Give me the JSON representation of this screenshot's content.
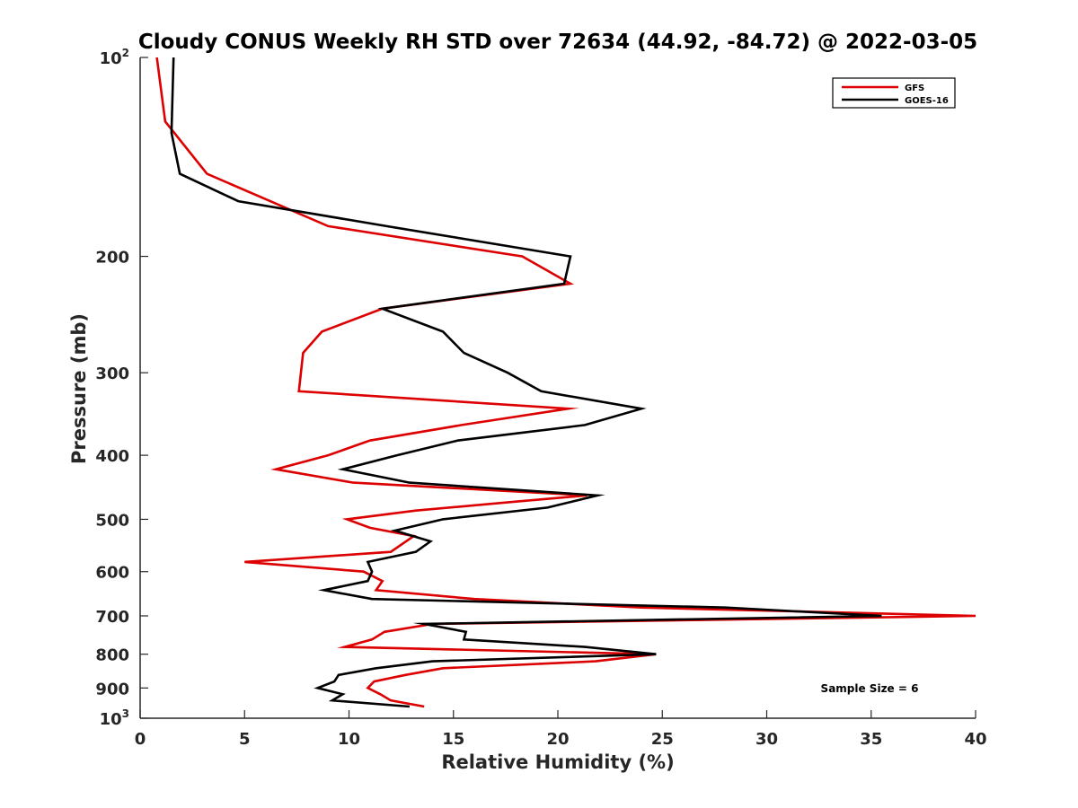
{
  "chart_data": {
    "type": "line",
    "title": "Cloudy CONUS Weekly RH STD over 72634 (44.92, -84.72) @ 2022-03-05",
    "xlabel": "Relative Humidity (%)",
    "ylabel": "Pressure (mb)",
    "xlim": [
      0,
      40
    ],
    "ylim": [
      100,
      1000
    ],
    "y_scale": "log",
    "y_reversed": true,
    "grid": false,
    "legend_position": "top-right",
    "x_ticks": [
      "0",
      "5",
      "10",
      "15",
      "20",
      "25",
      "30",
      "35",
      "40"
    ],
    "y_ticks": [
      {
        "base": "10",
        "sup": "2"
      },
      {
        "base": "200",
        "sup": ""
      },
      {
        "base": "300",
        "sup": ""
      },
      {
        "base": "400",
        "sup": ""
      },
      {
        "base": "500",
        "sup": ""
      },
      {
        "base": "600",
        "sup": ""
      },
      {
        "base": "700",
        "sup": ""
      },
      {
        "base": "800",
        "sup": ""
      },
      {
        "base": "900",
        "sup": ""
      },
      {
        "base": "10",
        "sup": "3"
      }
    ],
    "annotation": "Sample Size = 6",
    "series": [
      {
        "name": "GFS",
        "color": "#dd0000",
        "points": [
          [
            0.8,
            100
          ],
          [
            1.2,
            125
          ],
          [
            3.2,
            150
          ],
          [
            9.0,
            180
          ],
          [
            18.3,
            200
          ],
          [
            20.6,
            220
          ],
          [
            11.6,
            240
          ],
          [
            8.7,
            260
          ],
          [
            7.8,
            280
          ],
          [
            7.6,
            320
          ],
          [
            20.5,
            340
          ],
          [
            15.4,
            360
          ],
          [
            11.0,
            380
          ],
          [
            9.0,
            400
          ],
          [
            6.5,
            420
          ],
          [
            10.2,
            440
          ],
          [
            21.4,
            460
          ],
          [
            18.0,
            470
          ],
          [
            13.2,
            485
          ],
          [
            9.9,
            500
          ],
          [
            11.0,
            515
          ],
          [
            13.1,
            530
          ],
          [
            12.0,
            560
          ],
          [
            5.0,
            580
          ],
          [
            10.7,
            600
          ],
          [
            11.6,
            620
          ],
          [
            11.3,
            640
          ],
          [
            16.0,
            660
          ],
          [
            24.0,
            680
          ],
          [
            40.0,
            700
          ],
          [
            14.0,
            720
          ],
          [
            11.7,
            740
          ],
          [
            11.1,
            760
          ],
          [
            9.8,
            780
          ],
          [
            24.7,
            800
          ],
          [
            21.8,
            820
          ],
          [
            14.5,
            840
          ],
          [
            12.7,
            860
          ],
          [
            11.2,
            880
          ],
          [
            10.9,
            900
          ],
          [
            11.5,
            920
          ],
          [
            12.0,
            940
          ],
          [
            13.6,
            960
          ]
        ]
      },
      {
        "name": "GOES-16",
        "color": "#000000",
        "points": [
          [
            1.6,
            100
          ],
          [
            1.5,
            130
          ],
          [
            1.9,
            150
          ],
          [
            4.7,
            165
          ],
          [
            11.8,
            180
          ],
          [
            20.6,
            200
          ],
          [
            20.3,
            220
          ],
          [
            11.6,
            240
          ],
          [
            14.5,
            260
          ],
          [
            15.5,
            280
          ],
          [
            17.6,
            300
          ],
          [
            19.2,
            320
          ],
          [
            24.0,
            340
          ],
          [
            21.3,
            360
          ],
          [
            15.2,
            380
          ],
          [
            12.3,
            400
          ],
          [
            9.7,
            420
          ],
          [
            12.9,
            440
          ],
          [
            21.9,
            460
          ],
          [
            19.5,
            480
          ],
          [
            14.5,
            500
          ],
          [
            12.2,
            520
          ],
          [
            13.9,
            540
          ],
          [
            13.2,
            560
          ],
          [
            10.9,
            580
          ],
          [
            11.1,
            600
          ],
          [
            10.9,
            620
          ],
          [
            8.8,
            640
          ],
          [
            11.1,
            660
          ],
          [
            28.0,
            680
          ],
          [
            35.5,
            700
          ],
          [
            13.6,
            720
          ],
          [
            15.6,
            740
          ],
          [
            15.5,
            760
          ],
          [
            21.3,
            780
          ],
          [
            24.7,
            800
          ],
          [
            14.0,
            820
          ],
          [
            11.3,
            840
          ],
          [
            9.5,
            860
          ],
          [
            9.3,
            880
          ],
          [
            8.5,
            900
          ],
          [
            9.7,
            920
          ],
          [
            9.2,
            940
          ],
          [
            12.9,
            960
          ]
        ]
      }
    ]
  }
}
